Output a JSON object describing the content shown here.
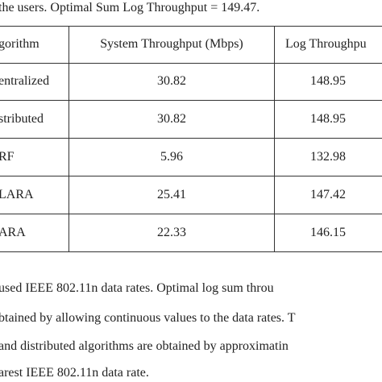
{
  "caption": "the users. Optimal Sum Log Throughput = 149.47.",
  "table": {
    "header": [
      "gorithm",
      "System Throughput (Mbps)",
      "Log Throughpu"
    ],
    "rows": [
      [
        "entralized",
        "30.82",
        "148.95"
      ],
      [
        "stributed",
        "30.82",
        "148.95"
      ],
      [
        "RF",
        "5.96",
        "132.98"
      ],
      [
        "LARA",
        "25.41",
        "147.42"
      ],
      [
        "ARA",
        "22.33",
        "146.15"
      ]
    ]
  },
  "notes": [
    "used IEEE 802.11n data rates. Optimal log sum throu",
    "btained by allowing continuous values to the data rates. T",
    "and distributed algorithms are obtained by approximatin",
    "arest IEEE 802.11n data rate."
  ]
}
